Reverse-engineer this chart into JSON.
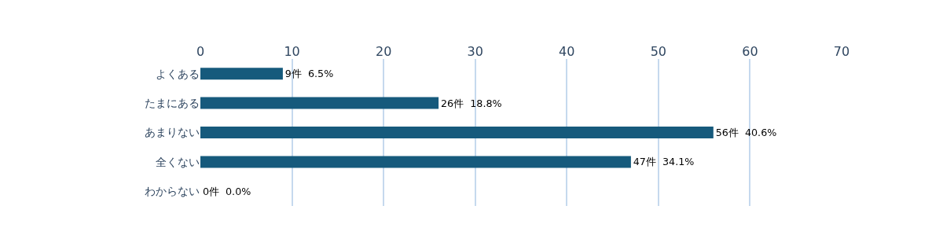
{
  "chart_data": {
    "type": "bar",
    "orientation": "horizontal",
    "categories": [
      "よくある",
      "たまにある",
      "あまりない",
      "全くない",
      "わからない"
    ],
    "values": [
      9,
      26,
      56,
      47,
      0
    ],
    "value_labels": [
      "9件  6.5%",
      "26件  18.8%",
      "56件  40.6%",
      "47件  34.1%",
      "0件  0.0%"
    ],
    "color": "#165a7c",
    "xlim": [
      0,
      70
    ],
    "xticks": [
      0,
      10,
      20,
      30,
      40,
      50,
      60,
      70
    ],
    "grid": "x",
    "legend": false
  }
}
